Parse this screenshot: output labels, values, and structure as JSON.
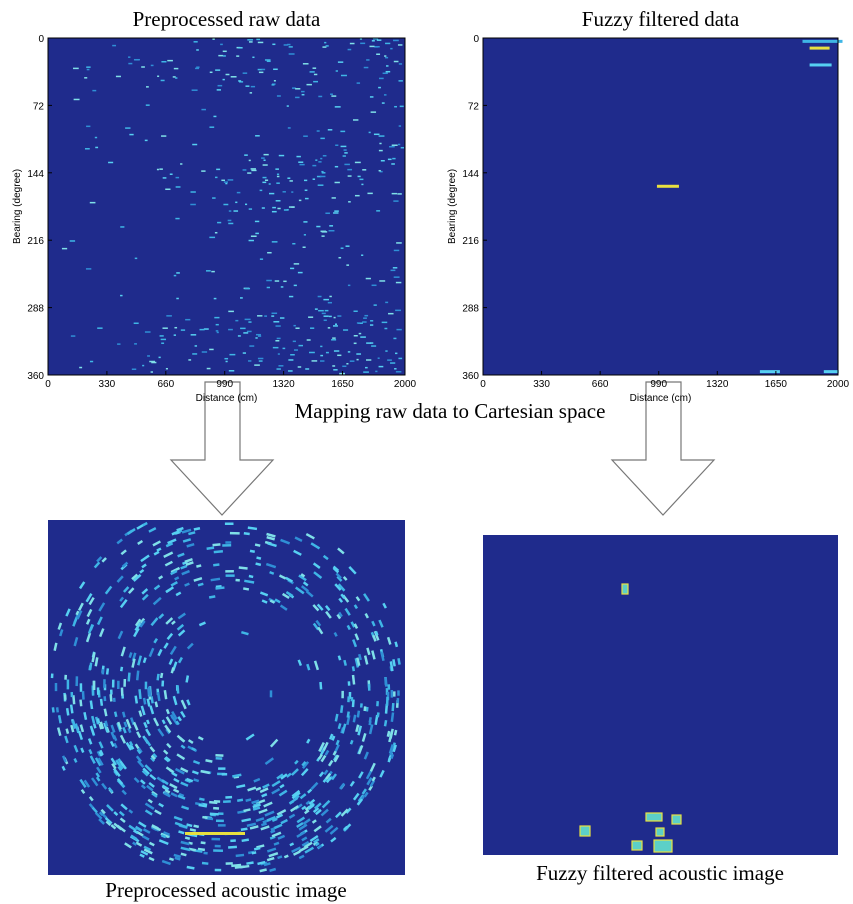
{
  "panels": [
    {
      "title": "Preprocessed raw data",
      "x_label": "Distance (cm)",
      "y_label": "Bearing (degree)",
      "xlim": [
        0,
        2000
      ],
      "xticks": [
        0,
        330,
        660,
        990,
        1320,
        1650,
        2000
      ],
      "ylim": [
        0,
        360
      ],
      "yticks": [
        0,
        72,
        144,
        216,
        288,
        360
      ]
    },
    {
      "title": "Fuzzy filtered data",
      "x_label": "Distance (cm)",
      "y_label": "Bearing (degree)",
      "xlim": [
        0,
        2000
      ],
      "xticks": [
        0,
        330,
        660,
        990,
        1320,
        1650,
        2000
      ],
      "ylim": [
        0,
        360
      ],
      "yticks": [
        0,
        72,
        144,
        216,
        288,
        360
      ]
    }
  ],
  "arrow_caption": "Mapping raw data to Cartesian space",
  "images": [
    {
      "caption": "Preprocessed acoustic image"
    },
    {
      "caption": "Fuzzy filtered acoustic image"
    }
  ]
}
